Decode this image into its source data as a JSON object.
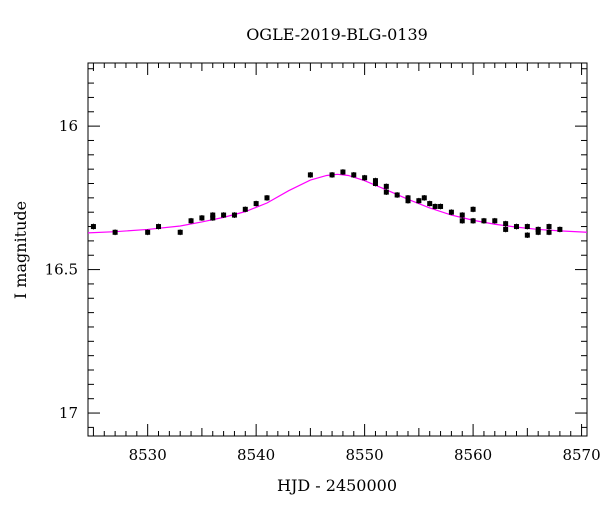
{
  "chart_data": {
    "type": "scatter",
    "title": "OGLE-2019-BLG-0139",
    "xlabel": "HJD - 2450000",
    "ylabel": "I magnitude",
    "xlim": [
      8524.5,
      8570.5
    ],
    "ylim": [
      17.08,
      15.78
    ],
    "y_inverted": true,
    "xticks": [
      8530,
      8540,
      8550,
      8560,
      8570
    ],
    "yticks": [
      16,
      16.5,
      17
    ],
    "ytick_labels": [
      "16",
      "16.5",
      "17"
    ],
    "grid": false,
    "colors": {
      "points": "#000000",
      "model": "#ff00ff"
    },
    "series": [
      {
        "kind": "points",
        "x": [
          8525.0,
          8527.0,
          8530.0,
          8531.0,
          8533.0,
          8534.0,
          8535.0,
          8536.0,
          8536.0,
          8537.0,
          8538.0,
          8539.0,
          8540.0,
          8541.0,
          8545.0,
          8547.0,
          8548.0,
          8549.0,
          8550.0,
          8551.0,
          8551.0,
          8552.0,
          8552.0,
          8553.0,
          8554.0,
          8554.0,
          8555.0,
          8555.5,
          8556.0,
          8556.5,
          8557.0,
          8558.0,
          8559.0,
          8559.0,
          8560.0,
          8560.0,
          8561.0,
          8562.0,
          8563.0,
          8563.0,
          8564.0,
          8565.0,
          8565.0,
          8566.0,
          8566.0,
          8567.0,
          8567.0,
          8568.0
        ],
        "y": [
          16.35,
          16.37,
          16.37,
          16.35,
          16.37,
          16.33,
          16.32,
          16.31,
          16.32,
          16.31,
          16.31,
          16.29,
          16.27,
          16.25,
          16.17,
          16.17,
          16.16,
          16.17,
          16.18,
          16.19,
          16.2,
          16.21,
          16.23,
          16.24,
          16.25,
          16.26,
          16.26,
          16.25,
          16.27,
          16.28,
          16.28,
          16.3,
          16.31,
          16.33,
          16.29,
          16.33,
          16.33,
          16.33,
          16.34,
          16.36,
          16.35,
          16.35,
          16.38,
          16.36,
          16.37,
          16.35,
          16.37,
          16.36
        ],
        "yerr": 0.01
      },
      {
        "kind": "model",
        "x": [
          8524.5,
          8527,
          8530,
          8533,
          8535,
          8537,
          8539,
          8541,
          8543,
          8545,
          8546.5,
          8547.5,
          8548.5,
          8550,
          8552,
          8554,
          8556,
          8558,
          8560,
          8562,
          8564,
          8566,
          8568,
          8570.5
        ],
        "y": [
          16.372,
          16.368,
          16.36,
          16.348,
          16.334,
          16.318,
          16.298,
          16.268,
          16.225,
          16.188,
          16.172,
          16.168,
          16.172,
          16.19,
          16.222,
          16.255,
          16.285,
          16.31,
          16.328,
          16.342,
          16.352,
          16.36,
          16.365,
          16.37
        ]
      }
    ]
  }
}
